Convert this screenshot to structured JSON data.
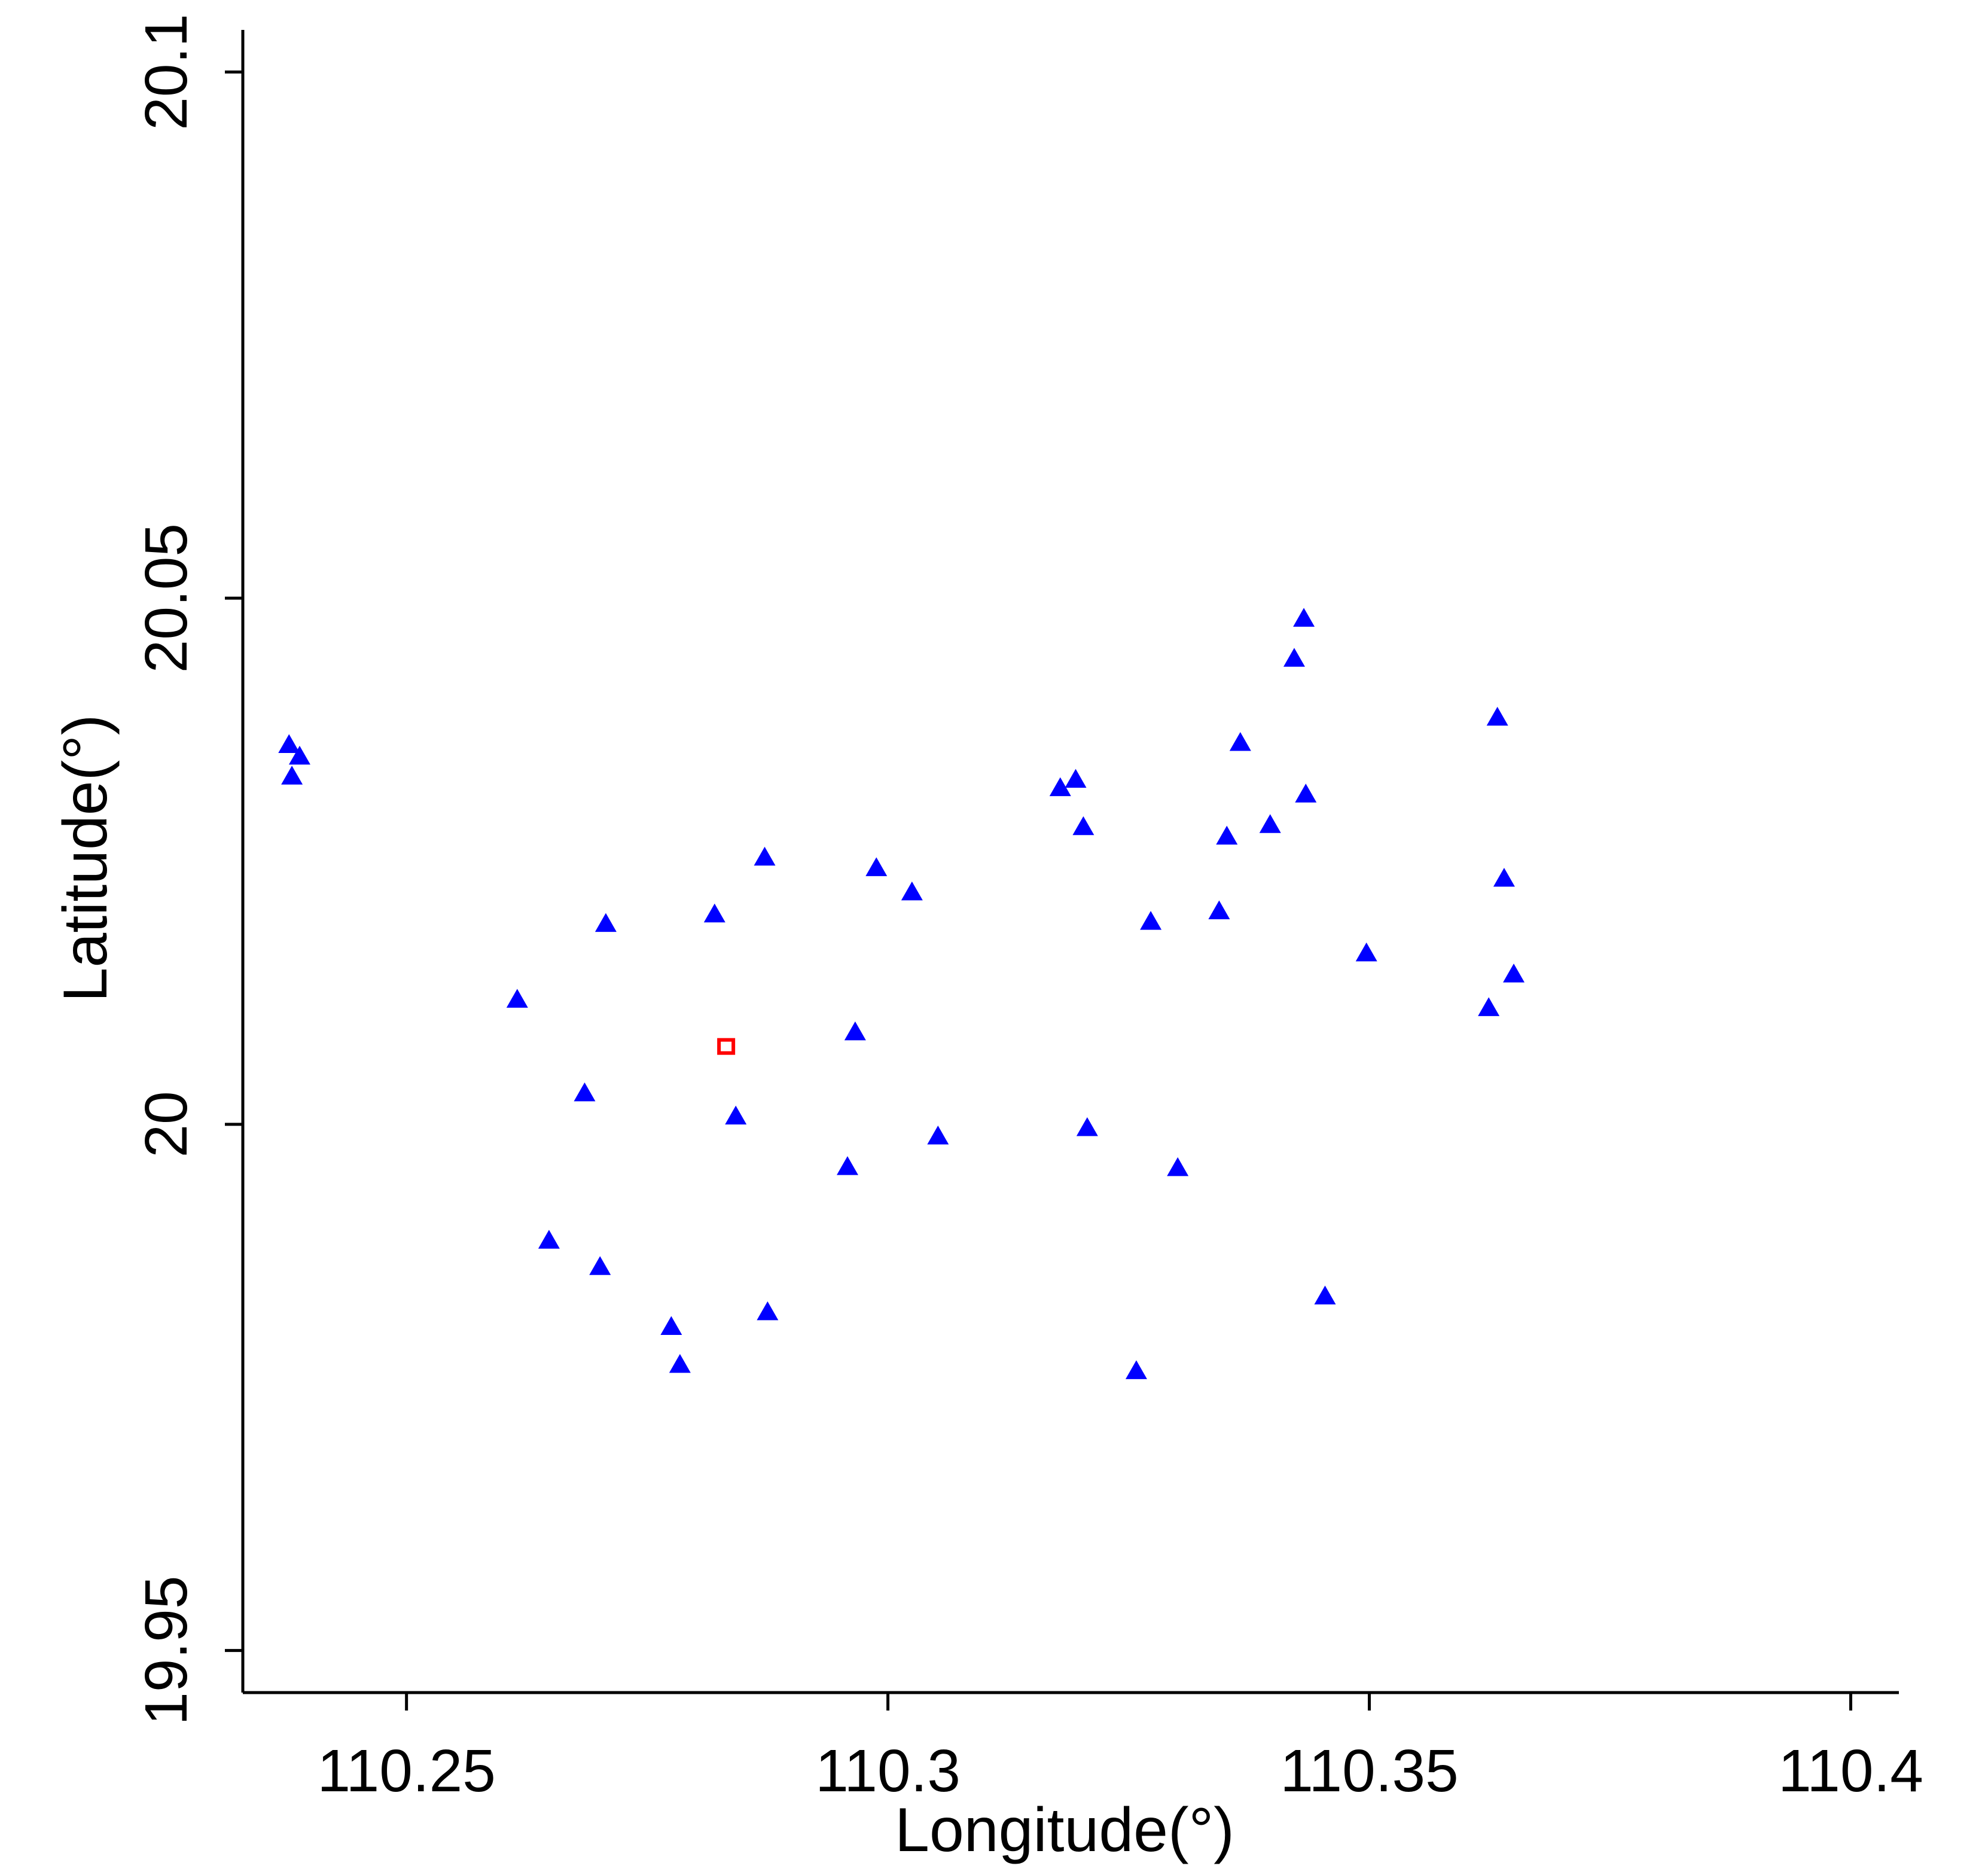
{
  "chart_data": {
    "type": "scatter",
    "xlabel": "Longitude(°)",
    "ylabel": "Latitude(°)",
    "xlim": [
      110.233,
      110.405
    ],
    "ylim": [
      19.946,
      20.104
    ],
    "xticks": [
      110.25,
      110.3,
      110.35,
      110.4
    ],
    "xtick_labels": [
      "110.25",
      "110.3",
      "110.35",
      "110.4"
    ],
    "yticks": [
      19.95,
      20.0,
      20.05,
      20.1
    ],
    "ytick_labels": [
      "19.95",
      "20",
      "20.05",
      "20.1"
    ],
    "grid": false,
    "legend": "none",
    "series": [
      {
        "marker": "triangle",
        "color": "#0000ff",
        "points": [
          [
            110.2378,
            20.0359
          ],
          [
            110.2389,
            20.0348
          ],
          [
            110.2381,
            20.0329
          ],
          [
            110.2615,
            20.0117
          ],
          [
            110.2648,
            19.9888
          ],
          [
            110.2685,
            20.0028
          ],
          [
            110.2707,
            20.0189
          ],
          [
            110.2701,
            19.9863
          ],
          [
            110.2775,
            19.9806
          ],
          [
            110.2784,
            19.977
          ],
          [
            110.282,
            20.0198
          ],
          [
            110.2842,
            20.0006
          ],
          [
            110.2872,
            20.0252
          ],
          [
            110.2875,
            19.982
          ],
          [
            110.2958,
            19.9958
          ],
          [
            110.2966,
            20.0086
          ],
          [
            110.2988,
            20.0242
          ],
          [
            110.3025,
            20.0219
          ],
          [
            110.3052,
            19.9987
          ],
          [
            110.3179,
            20.0318
          ],
          [
            110.3195,
            20.0326
          ],
          [
            110.3203,
            20.0281
          ],
          [
            110.3207,
            19.9995
          ],
          [
            110.3258,
            19.9764
          ],
          [
            110.3273,
            20.0191
          ],
          [
            110.3301,
            19.9957
          ],
          [
            110.3344,
            20.0201
          ],
          [
            110.3352,
            20.0272
          ],
          [
            110.3366,
            20.0361
          ],
          [
            110.3397,
            20.0283
          ],
          [
            110.3422,
            20.0441
          ],
          [
            110.3432,
            20.0479
          ],
          [
            110.3434,
            20.0312
          ],
          [
            110.3454,
            19.9835
          ],
          [
            110.3497,
            20.0161
          ],
          [
            110.3624,
            20.0109
          ],
          [
            110.3633,
            20.0385
          ],
          [
            110.364,
            20.0232
          ],
          [
            110.365,
            20.0141
          ]
        ]
      },
      {
        "marker": "square",
        "color": "#ff0000",
        "points": [
          [
            110.2832,
            20.0074
          ]
        ]
      }
    ]
  }
}
